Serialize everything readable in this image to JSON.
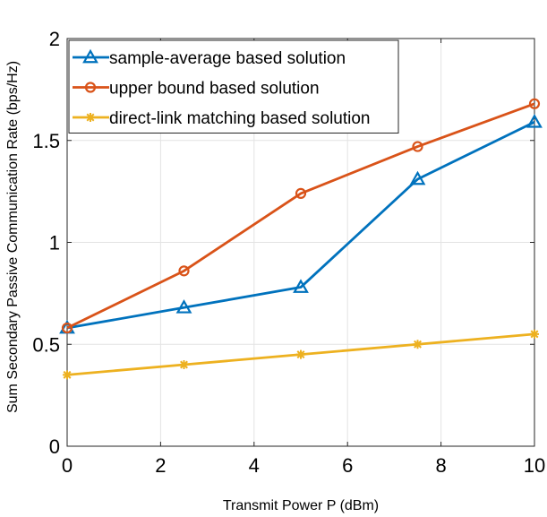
{
  "chart_data": {
    "type": "line",
    "title": "",
    "xlabel": "Transmit Power P (dBm)",
    "ylabel": "Sum Secondary Passive Communication Rate (bps/Hz)",
    "xlim": [
      0,
      10
    ],
    "ylim": [
      0,
      2
    ],
    "xticks": [
      0,
      2,
      4,
      6,
      8,
      10
    ],
    "yticks": [
      0,
      0.5,
      1,
      1.5,
      2
    ],
    "xtick_labels": [
      "0",
      "2",
      "4",
      "6",
      "8",
      "10"
    ],
    "ytick_labels": [
      "0",
      "0.5",
      "1",
      "1.5",
      "2"
    ],
    "grid": true,
    "legend_position": "top-left",
    "x": [
      0,
      2.5,
      5,
      7.5,
      10
    ],
    "series": [
      {
        "name": "sample-average based solution",
        "values": [
          0.58,
          0.68,
          0.78,
          1.31,
          1.59
        ],
        "color": "#0072BD",
        "marker": "triangle"
      },
      {
        "name": "upper bound based solution",
        "values": [
          0.58,
          0.86,
          1.24,
          1.47,
          1.68
        ],
        "color": "#D95319",
        "marker": "circle"
      },
      {
        "name": "direct-link matching based solution",
        "values": [
          0.35,
          0.4,
          0.45,
          0.5,
          0.55
        ],
        "color": "#EDB120",
        "marker": "asterisk"
      }
    ]
  }
}
